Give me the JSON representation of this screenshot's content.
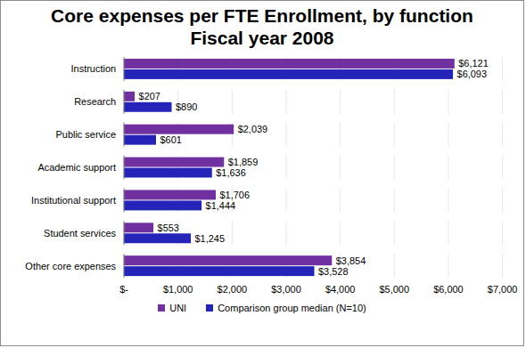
{
  "chart_data": {
    "type": "bar",
    "orientation": "horizontal",
    "title": "Core expenses per FTE Enrollment, by function",
    "subtitle": "Fiscal year 2008",
    "categories": [
      "Instruction",
      "Research",
      "Public service",
      "Academic support",
      "Institutional support",
      "Student services",
      "Other core expenses"
    ],
    "series": [
      {
        "name": "UNI",
        "color": "#7030a0",
        "values": [
          6121,
          207,
          2039,
          1859,
          1706,
          553,
          3854
        ],
        "value_labels": [
          "$6,121",
          "$207",
          "$2,039",
          "$1,859",
          "$1,706",
          "$553",
          "$3,854"
        ]
      },
      {
        "name": "Comparison group median (N=10)",
        "color": "#2424b8",
        "values": [
          6093,
          890,
          601,
          1636,
          1444,
          1245,
          3528
        ],
        "value_labels": [
          "$6,093",
          "$890",
          "$601",
          "$1,636",
          "$1,444",
          "$1,245",
          "$3,528"
        ]
      }
    ],
    "xlim": [
      0,
      7000
    ],
    "xticks": [
      {
        "value": 0,
        "label": "$-"
      },
      {
        "value": 1000,
        "label": "$1,000"
      },
      {
        "value": 2000,
        "label": "$2,000"
      },
      {
        "value": 3000,
        "label": "$3,000"
      },
      {
        "value": 4000,
        "label": "$4,000"
      },
      {
        "value": 5000,
        "label": "$5,000"
      },
      {
        "value": 6000,
        "label": "$6,000"
      },
      {
        "value": 7000,
        "label": "$7,000"
      }
    ],
    "grid": true,
    "data_labels": true,
    "legend": "bottom"
  }
}
